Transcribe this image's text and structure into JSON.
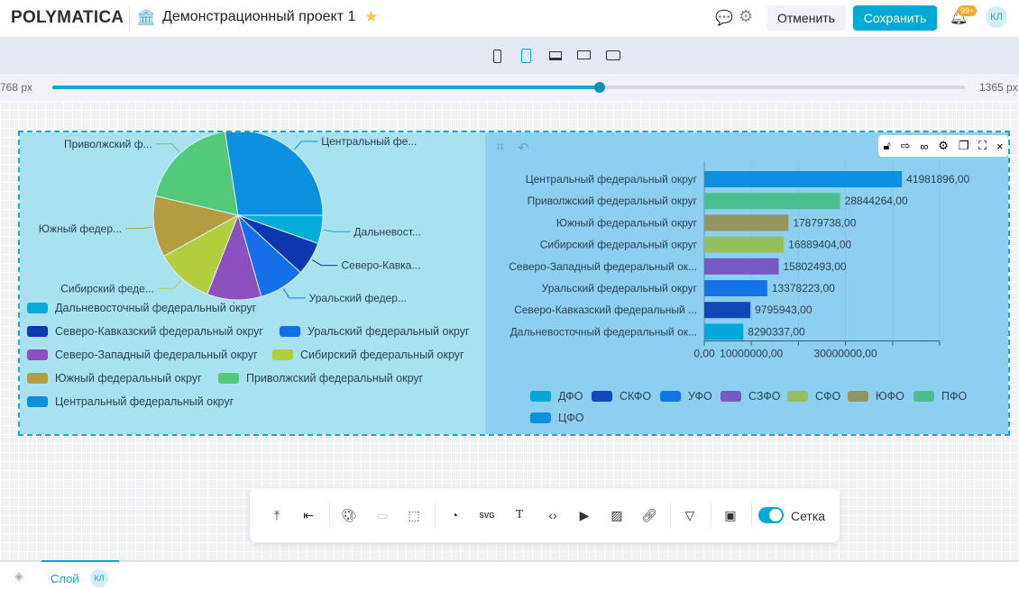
{
  "header": {
    "logo": "POLYMATICA",
    "project_title": "Демонстрационный проект 1",
    "cancel": "Отменить",
    "save": "Сохранить",
    "notif_badge": "99+",
    "avatar": "КЛ",
    "accent": "#00a9d6"
  },
  "devices": [
    "phone-icon",
    "tablet-icon",
    "laptop-icon",
    "desktop-icon",
    "wide-desktop-icon"
  ],
  "slider": {
    "min_label": "768 px",
    "max_label": "1365 px",
    "value_fraction": 0.6
  },
  "pie": {
    "labels_short": [
      "Дальневост...",
      "Северо-Кавка...",
      "Уральский федер...",
      "Северо-Западный фед...",
      "Сибирский феде...",
      "Южный федер...",
      "Приволжский ф...",
      "Центральный фе..."
    ]
  },
  "chart_data": [
    {
      "type": "pie",
      "categories": [
        "Дальневосточный федеральный округ",
        "Северо-Кавказский федеральный округ",
        "Уральский федеральный округ",
        "Северо-Западный федеральный округ",
        "Сибирский федеральный округ",
        "Южный федеральный округ",
        "Приволжский федеральный округ",
        "Центральный федеральный округ"
      ],
      "values": [
        8290337,
        9795943,
        13378223,
        15802493,
        16889404,
        17879738,
        28844264,
        41981896
      ],
      "colors": [
        "#05acd8",
        "#0b38ae",
        "#1570e8",
        "#8b4fc0",
        "#b4cf3e",
        "#b39d40",
        "#52c978",
        "#0b8fde"
      ],
      "legend": "bottom"
    },
    {
      "type": "bar",
      "orientation": "horizontal",
      "categories": [
        "Центральный федеральный округ",
        "Приволжский федеральный округ",
        "Южный федеральный округ",
        "Сибирский федеральный округ",
        "Северо-Западный федеральный ок...",
        "Уральский федеральный округ",
        "Северо-Кавказский федеральный ...",
        "Дальневосточный федеральный ок..."
      ],
      "values": [
        41981896,
        28844264,
        17879738,
        16889404,
        15802493,
        13378223,
        9795943,
        8290337
      ],
      "value_labels": [
        "41981896,00",
        "28844264,00",
        "17879738,00",
        "16889404,00",
        "15802493,00",
        "13378223,00",
        "9795943,00",
        "8290337,00"
      ],
      "colors": [
        "#0e8fe0",
        "#48bf8c",
        "#969460",
        "#95bf5f",
        "#7a58c4",
        "#1473e6",
        "#0f48b8",
        "#04a8d8"
      ],
      "xlim": [
        0,
        50000000
      ],
      "tick_labels": [
        "0,00",
        "10000000,00",
        "30000000,00"
      ],
      "legend": [
        "ДФО",
        "СКФО",
        "УФО",
        "СЗФО",
        "СФО",
        "ЮФО",
        "ПФО",
        "ЦФО"
      ],
      "legend_colors": [
        "#04a8d8",
        "#0f48b8",
        "#1473e6",
        "#7a58c4",
        "#95bf5f",
        "#969460",
        "#48bf8c",
        "#0e8fe0"
      ],
      "legend_position": "bottom"
    }
  ],
  "toolbar": {
    "grid_label": "Сетка",
    "grid_on": true
  },
  "bottom": {
    "tab": "Слой",
    "avatar": "КЛ"
  }
}
